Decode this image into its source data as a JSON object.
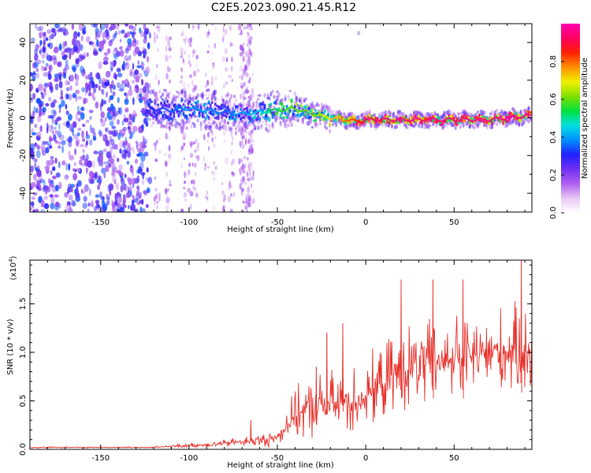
{
  "title": "C2E5.2023.090.21.45.R12",
  "colorbar": {
    "label": "Normalized spectral amplitude",
    "ticks": [
      "0.0",
      "0.2",
      "0.4",
      "0.6",
      "0.8"
    ],
    "colors": [
      "#ffffff",
      "#e8c8f5",
      "#b060f0",
      "#7030f0",
      "#2020ff",
      "#0090ff",
      "#00e0e0",
      "#00e040",
      "#80e000",
      "#f0f000",
      "#ff9000",
      "#ff2000",
      "#ff0060",
      "#ff00b0"
    ]
  },
  "chart_data": [
    {
      "type": "heatmap",
      "title": "C2E5.2023.090.21.45.R12",
      "xlabel": "Height of straight line (km)",
      "ylabel": "Frequency (Hz)",
      "xlim": [
        -190,
        94
      ],
      "ylim": [
        -50,
        50
      ],
      "xticks": [
        "-150",
        "-100",
        "-50",
        "0",
        "50"
      ],
      "yticks": [
        "40",
        "20",
        "0",
        "-20",
        "-40"
      ],
      "zlabel": "Normalized spectral amplitude",
      "zlim": [
        0,
        1
      ],
      "ridge": {
        "x": [
          -122,
          -110,
          -100,
          -90,
          -80,
          -70,
          -60,
          -50,
          -40,
          -30,
          -20,
          -10,
          -5,
          0,
          10,
          30,
          50,
          70,
          90
        ],
        "y": [
          5,
          4,
          5,
          4,
          3,
          2,
          3,
          4,
          5,
          2,
          0,
          -1,
          -2,
          -1,
          -1,
          -1,
          -1,
          -1,
          1
        ],
        "peak_amplitude": [
          0.3,
          0.35,
          0.4,
          0.4,
          0.35,
          0.4,
          0.45,
          0.55,
          0.6,
          0.6,
          0.7,
          0.8,
          0.85,
          0.9,
          0.95,
          0.95,
          0.95,
          0.95,
          0.95
        ]
      }
    },
    {
      "type": "line",
      "xlabel": "Height of straight line (km)",
      "ylabel": "SNR (10 * v/v)",
      "yscale_note": "(x10",
      "yscale_exp": "4",
      "xlim": [
        -190,
        94
      ],
      "ylim": [
        0,
        1.95
      ],
      "xticks": [
        "-150",
        "-100",
        "-50",
        "0",
        "50"
      ],
      "yticks": [
        "0.0",
        "0.5",
        "1.0",
        "1.5"
      ],
      "series": [
        {
          "color": "#e8302a",
          "x": [
            -190,
            -150,
            -120,
            -100,
            -80,
            -70,
            -60,
            -50,
            -45,
            -40,
            -35,
            -30,
            -25,
            -20,
            -15,
            -10,
            -5,
            0,
            5,
            10,
            15,
            20,
            30,
            40,
            50,
            60,
            70,
            80,
            90
          ],
          "mean": [
            0.02,
            0.02,
            0.02,
            0.04,
            0.06,
            0.08,
            0.09,
            0.12,
            0.25,
            0.35,
            0.4,
            0.42,
            0.45,
            0.45,
            0.48,
            0.5,
            0.52,
            0.55,
            0.62,
            0.7,
            0.75,
            0.8,
            0.85,
            0.9,
            0.95,
            0.95,
            1.0,
            1.0,
            1.02
          ],
          "spread": [
            0.01,
            0.01,
            0.01,
            0.03,
            0.05,
            0.07,
            0.08,
            0.12,
            0.2,
            0.3,
            0.35,
            0.4,
            0.4,
            0.42,
            0.45,
            0.45,
            0.45,
            0.45,
            0.45,
            0.5,
            0.5,
            0.55,
            0.55,
            0.55,
            0.55,
            0.55,
            0.55,
            0.55,
            0.55
          ],
          "peaks": [
            {
              "x": -65,
              "y": 0.3
            },
            {
              "x": -28,
              "y": 0.85
            },
            {
              "x": -22,
              "y": 1.2
            },
            {
              "x": -13,
              "y": 1.3
            },
            {
              "x": 20,
              "y": 1.75
            },
            {
              "x": 38,
              "y": 1.75
            },
            {
              "x": 55,
              "y": 1.75
            },
            {
              "x": 88,
              "y": 1.95
            }
          ]
        }
      ]
    }
  ]
}
